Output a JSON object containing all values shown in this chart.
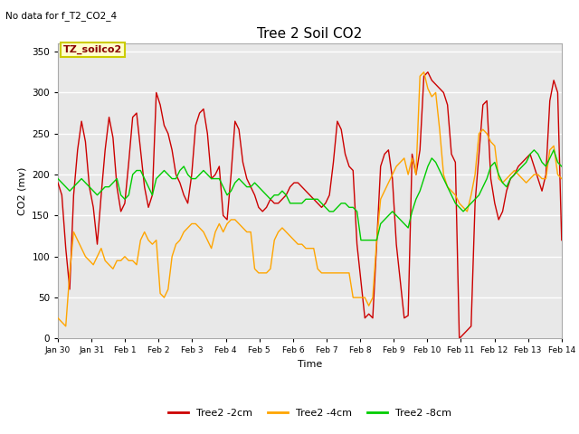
{
  "title": "Tree 2 Soil CO2",
  "no_data_text": "No data for f_T2_CO2_4",
  "ylabel": "CO2 (mv)",
  "xlabel": "Time",
  "annotation": "TZ_soilco2",
  "ylim": [
    0,
    360
  ],
  "yticks": [
    0,
    50,
    100,
    150,
    200,
    250,
    300,
    350
  ],
  "xtick_labels": [
    "Jan 30",
    "Jan 31",
    "Feb 1",
    "Feb 2",
    "Feb 3",
    "Feb 4",
    "Feb 5",
    "Feb 6",
    "Feb 7",
    "Feb 8",
    "Feb 9",
    "Feb 10",
    "Feb 11",
    "Feb 12",
    "Feb 13",
    "Feb 14"
  ],
  "xtick_positions": [
    0,
    1,
    2,
    3,
    4,
    5,
    6,
    7,
    8,
    9,
    10,
    11,
    12,
    13,
    14,
    15
  ],
  "legend_labels": [
    "Tree2 -2cm",
    "Tree2 -4cm",
    "Tree2 -8cm"
  ],
  "colors": {
    "red": "#CC0000",
    "orange": "#FFA500",
    "green": "#00CC00",
    "bg_inner": "#E8E8E8",
    "bg_outer": "#FFFFFF",
    "annotation_bg": "#FFFFCC",
    "annotation_border": "#CCCC00",
    "grid": "#FFFFFF"
  },
  "background_color": "#ffffff",
  "series_red": [
    190,
    175,
    110,
    60,
    175,
    230,
    265,
    240,
    185,
    160,
    115,
    175,
    230,
    270,
    245,
    185,
    155,
    165,
    215,
    270,
    275,
    230,
    185,
    160,
    175,
    300,
    285,
    260,
    250,
    230,
    200,
    190,
    175,
    165,
    200,
    260,
    275,
    280,
    250,
    195,
    200,
    210,
    150,
    145,
    200,
    265,
    255,
    215,
    195,
    185,
    175,
    160,
    155,
    160,
    170,
    165,
    165,
    170,
    175,
    185,
    190,
    190,
    185,
    180,
    175,
    170,
    165,
    160,
    165,
    175,
    215,
    265,
    255,
    225,
    210,
    205,
    115,
    70,
    25,
    30,
    25,
    115,
    210,
    225,
    230,
    195,
    115,
    70,
    25,
    28,
    225,
    200,
    230,
    320,
    325,
    315,
    310,
    305,
    300,
    285,
    225,
    215,
    0,
    5,
    10,
    15,
    165,
    225,
    285,
    290,
    195,
    165,
    145,
    155,
    180,
    195,
    200,
    210,
    215,
    220,
    225,
    210,
    195,
    180,
    200,
    290,
    315,
    300,
    120
  ],
  "series_orange": [
    25,
    20,
    15,
    80,
    130,
    120,
    110,
    100,
    95,
    90,
    100,
    110,
    95,
    90,
    85,
    95,
    95,
    100,
    95,
    95,
    90,
    120,
    130,
    120,
    115,
    120,
    55,
    50,
    60,
    100,
    115,
    120,
    130,
    135,
    140,
    140,
    135,
    130,
    120,
    110,
    130,
    140,
    130,
    140,
    145,
    145,
    140,
    135,
    130,
    130,
    85,
    80,
    80,
    80,
    85,
    120,
    130,
    135,
    130,
    125,
    120,
    115,
    115,
    110,
    110,
    110,
    85,
    80,
    80,
    80,
    80,
    80,
    80,
    80,
    80,
    50,
    50,
    50,
    50,
    40,
    50,
    120,
    170,
    180,
    190,
    200,
    210,
    215,
    220,
    200,
    220,
    200,
    320,
    325,
    305,
    295,
    300,
    255,
    200,
    185,
    180,
    175,
    165,
    160,
    155,
    175,
    200,
    250,
    255,
    250,
    240,
    235,
    195,
    190,
    195,
    200,
    205,
    200,
    195,
    190,
    195,
    200,
    200,
    195,
    195,
    230,
    235,
    200,
    195
  ],
  "series_green": [
    195,
    190,
    185,
    180,
    185,
    190,
    195,
    190,
    185,
    180,
    175,
    180,
    185,
    185,
    190,
    195,
    175,
    170,
    175,
    200,
    205,
    205,
    195,
    185,
    175,
    195,
    200,
    205,
    200,
    195,
    195,
    205,
    210,
    200,
    195,
    195,
    200,
    205,
    200,
    195,
    195,
    195,
    185,
    175,
    180,
    190,
    195,
    190,
    185,
    185,
    190,
    185,
    180,
    175,
    170,
    175,
    175,
    180,
    175,
    165,
    165,
    165,
    165,
    170,
    170,
    170,
    170,
    165,
    160,
    155,
    155,
    160,
    165,
    165,
    160,
    160,
    155,
    120,
    120,
    120,
    120,
    120,
    140,
    145,
    150,
    155,
    150,
    145,
    140,
    135,
    155,
    170,
    180,
    195,
    210,
    220,
    215,
    205,
    195,
    185,
    175,
    165,
    160,
    155,
    160,
    165,
    170,
    175,
    185,
    195,
    210,
    215,
    200,
    190,
    185,
    195,
    200,
    205,
    210,
    215,
    225,
    230,
    225,
    215,
    210,
    220,
    230,
    215,
    210
  ]
}
